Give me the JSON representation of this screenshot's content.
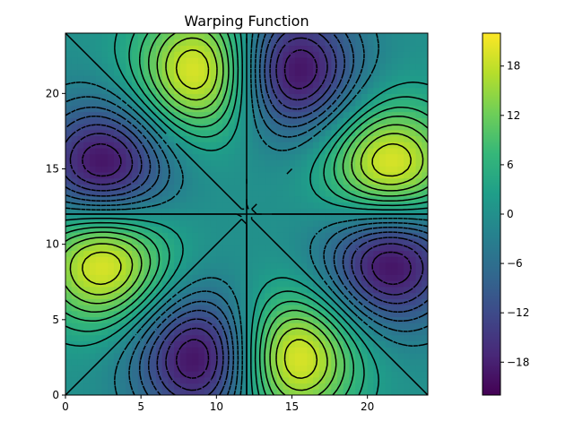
{
  "chart_data": {
    "type": "heatmap",
    "title": "Warping Function",
    "xlabel": "",
    "ylabel": "",
    "xlim": [
      0,
      24
    ],
    "ylim": [
      0,
      24
    ],
    "x_ticks": [
      0,
      5,
      10,
      15,
      20
    ],
    "y_ticks": [
      0,
      5,
      10,
      15,
      20
    ],
    "colorbar": {
      "colormap": "viridis",
      "range": [
        -22,
        22
      ],
      "ticks": [
        -18,
        -12,
        -6,
        0,
        6,
        12,
        18
      ]
    },
    "center": [
      12,
      12
    ],
    "description_of_field": "antisymmetric warping with four positive lobes (left-lower, right-upper, bottom-right, top-left) and four negative lobes",
    "lobes": [
      {
        "x": 2.5,
        "y": 9,
        "sign": 1,
        "peak": 20
      },
      {
        "x": 21.5,
        "y": 15,
        "sign": 1,
        "peak": 20
      },
      {
        "x": 15,
        "y": 2.5,
        "sign": 1,
        "peak": 20
      },
      {
        "x": 9,
        "y": 21.5,
        "sign": 1,
        "peak": 20
      },
      {
        "x": 2.5,
        "y": 15,
        "sign": -1,
        "peak": 20
      },
      {
        "x": 21.5,
        "y": 9,
        "sign": -1,
        "peak": 20
      },
      {
        "x": 9,
        "y": 2.5,
        "sign": -1,
        "peak": 20
      },
      {
        "x": 15,
        "y": 21.5,
        "sign": -1,
        "peak": 20
      }
    ],
    "grid": false
  },
  "colors": {
    "viridis": [
      "#440154",
      "#482878",
      "#3e4989",
      "#31688e",
      "#26828e",
      "#1f9e89",
      "#35b779",
      "#6ece58",
      "#b5de2b",
      "#fde725"
    ],
    "contour_line": "#000000"
  }
}
